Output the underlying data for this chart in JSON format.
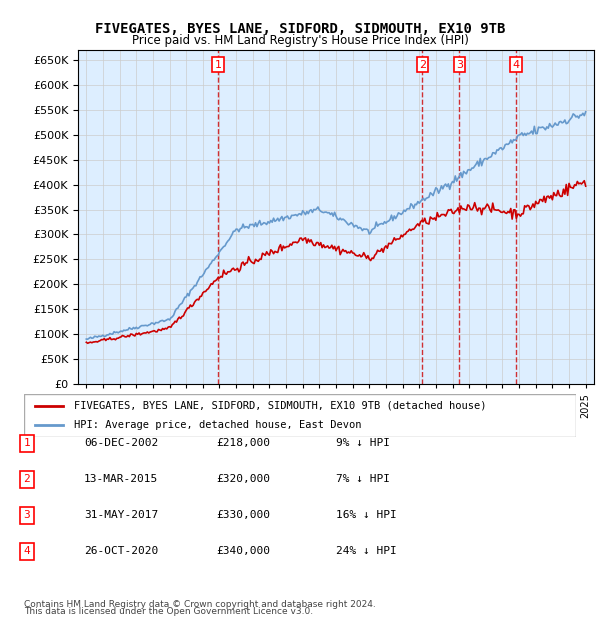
{
  "title": "FIVEGATES, BYES LANE, SIDFORD, SIDMOUTH, EX10 9TB",
  "subtitle": "Price paid vs. HM Land Registry's House Price Index (HPI)",
  "legend_line1": "FIVEGATES, BYES LANE, SIDFORD, SIDMOUTH, EX10 9TB (detached house)",
  "legend_line2": "HPI: Average price, detached house, East Devon",
  "footer1": "Contains HM Land Registry data © Crown copyright and database right 2024.",
  "footer2": "This data is licensed under the Open Government Licence v3.0.",
  "transactions": [
    {
      "num": 1,
      "date": "06-DEC-2002",
      "price": "£218,000",
      "hpi": "9% ↓ HPI",
      "year": 2002.92
    },
    {
      "num": 2,
      "date": "13-MAR-2015",
      "price": "£320,000",
      "hpi": "7% ↓ HPI",
      "year": 2015.19
    },
    {
      "num": 3,
      "date": "31-MAY-2017",
      "price": "£330,000",
      "hpi": "16% ↓ HPI",
      "year": 2017.41
    },
    {
      "num": 4,
      "date": "26-OCT-2020",
      "price": "£340,000",
      "hpi": "24% ↓ HPI",
      "year": 2020.82
    }
  ],
  "transaction_prices": [
    218000,
    320000,
    330000,
    340000
  ],
  "vline_color": "#cc0000",
  "red_line_color": "#cc0000",
  "blue_line_color": "#6699cc",
  "grid_color": "#cccccc",
  "background_color": "#ddeeff",
  "ylim": [
    0,
    670000
  ],
  "yticks": [
    0,
    50000,
    100000,
    150000,
    200000,
    250000,
    300000,
    350000,
    400000,
    450000,
    500000,
    550000,
    600000,
    650000
  ],
  "xlim_start": 1994.5,
  "xlim_end": 2025.5
}
